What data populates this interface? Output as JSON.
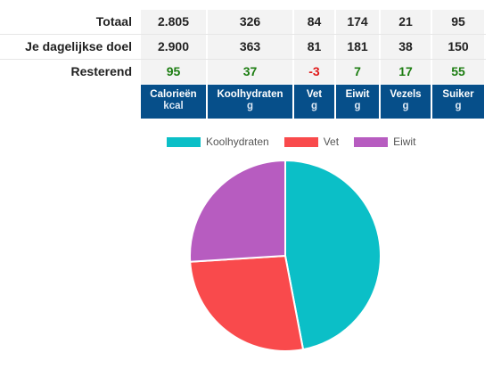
{
  "rows": [
    {
      "label": "Totaal",
      "values": [
        "2.805",
        "326",
        "84",
        "174",
        "21",
        "95"
      ]
    },
    {
      "label": "Je dagelijkse doel",
      "values": [
        "2.900",
        "363",
        "81",
        "181",
        "38",
        "150"
      ]
    },
    {
      "label": "Resterend",
      "values": [
        "95",
        "37",
        "-3",
        "7",
        "17",
        "55"
      ]
    }
  ],
  "remaining_status": [
    "positive",
    "positive",
    "negative",
    "positive",
    "positive",
    "positive"
  ],
  "columns": [
    {
      "name": "Calorieën",
      "unit": "kcal"
    },
    {
      "name": "Koolhydraten",
      "unit": "g"
    },
    {
      "name": "Vet",
      "unit": "g"
    },
    {
      "name": "Eiwit",
      "unit": "g"
    },
    {
      "name": "Vezels",
      "unit": "g"
    },
    {
      "name": "Suiker",
      "unit": "g"
    }
  ],
  "colors": {
    "header_bg": "#064f8a",
    "positive": "#1c7d11",
    "negative": "#e01b1b",
    "koolhydraten": "#0bbfc7",
    "vet": "#f94a4c",
    "eiwit": "#b75cc0"
  },
  "chart_data": {
    "type": "pie",
    "legend_position": "top-center",
    "series": [
      {
        "name": "Koolhydraten",
        "value": 47,
        "color": "#0bbfc7"
      },
      {
        "name": "Vet",
        "value": 27,
        "color": "#f94a4c"
      },
      {
        "name": "Eiwit",
        "value": 26,
        "color": "#b75cc0"
      }
    ]
  }
}
